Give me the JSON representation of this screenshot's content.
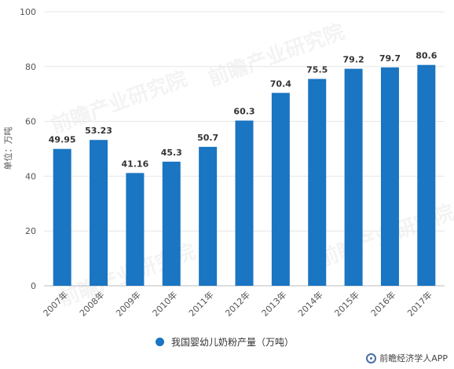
{
  "chart_data": {
    "type": "bar",
    "categories": [
      "2007年",
      "2008年",
      "2009年",
      "2010年",
      "2011年",
      "2012年",
      "2013年",
      "2014年",
      "2015年",
      "2016年",
      "2017年"
    ],
    "values": [
      49.95,
      53.23,
      41.16,
      45.3,
      50.7,
      60.3,
      70.4,
      75.5,
      79.2,
      79.7,
      80.6
    ],
    "data_labels": [
      "49.95",
      "53.23",
      "41.16",
      "45.3",
      "50.7",
      "60.3",
      "70.4",
      "75.5",
      "79.2",
      "79.7",
      "80.6"
    ],
    "ylabel": "单位：万吨",
    "ylim": [
      0,
      100
    ],
    "yticks": [
      0,
      20,
      40,
      60,
      80,
      100
    ],
    "grid": true,
    "legend_position": "bottom",
    "series": [
      {
        "name": "我国婴幼儿奶粉产量（万吨）",
        "color": "#1a75c2"
      }
    ]
  },
  "footer": {
    "source": "前瞻经济学人APP",
    "icon": "qianzhan-logo-icon"
  },
  "watermark": {
    "text": "前瞻产业研究院"
  }
}
